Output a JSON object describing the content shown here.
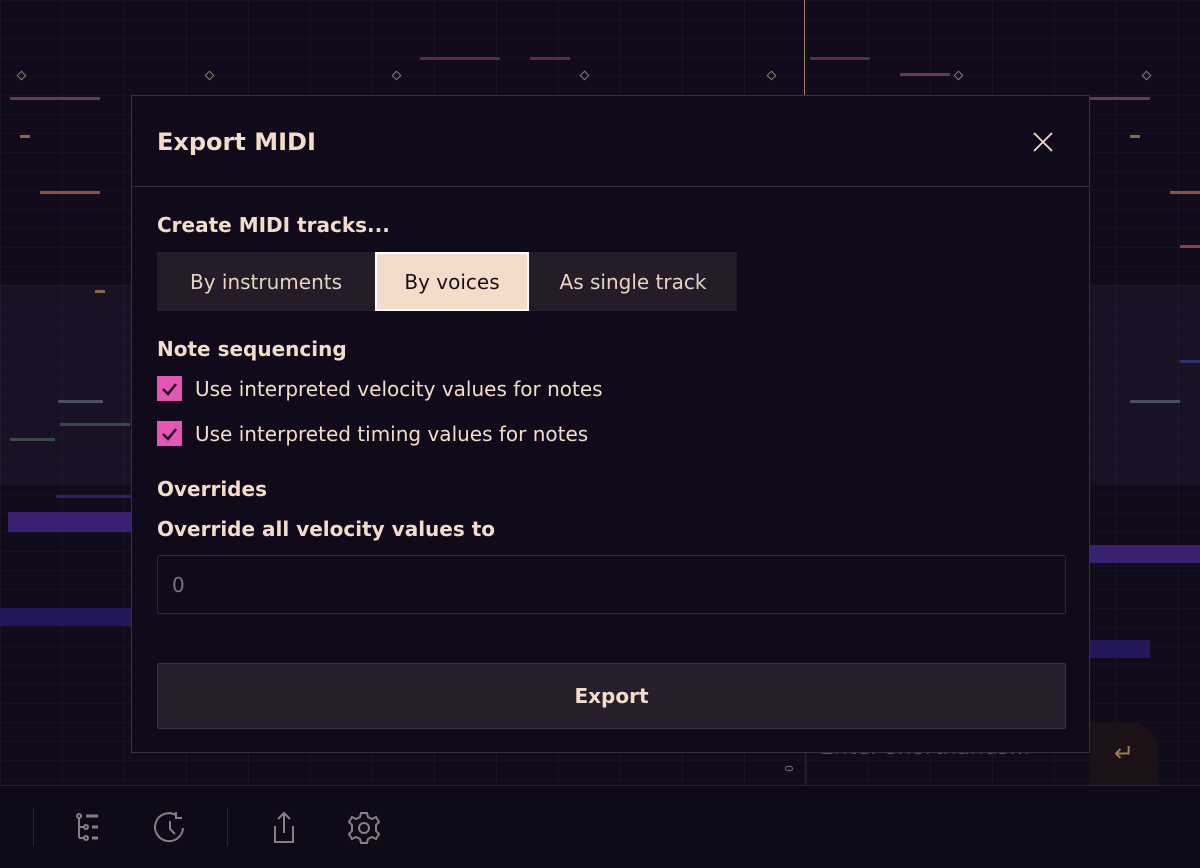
{
  "dialog": {
    "title": "Export MIDI",
    "close_icon": "close-icon",
    "tracks_label": "Create MIDI tracks...",
    "track_options": [
      {
        "label": "By instruments",
        "selected": false
      },
      {
        "label": "By voices",
        "selected": true
      },
      {
        "label": "As single track",
        "selected": false
      }
    ],
    "sequencing_label": "Note sequencing",
    "checkboxes": [
      {
        "label": "Use interpreted velocity values for notes",
        "checked": true
      },
      {
        "label": "Use interpreted timing values for notes",
        "checked": true
      }
    ],
    "overrides_label": "Overrides",
    "override_velocity_label": "Override all velocity values to",
    "override_velocity_placeholder": "0",
    "export_label": "Export"
  },
  "background": {
    "shorthand_placeholder": "Enter shorthands...",
    "axis_label": "0",
    "enter_icon": "return-icon"
  },
  "toolbar": {
    "icons": [
      "tree-list-icon",
      "history-icon",
      "share-icon",
      "gear-icon"
    ]
  },
  "colors": {
    "accent": "#e455b5",
    "selected_option": "#f4dccb",
    "text": "#f3dcc9",
    "background": "#120b1b"
  }
}
